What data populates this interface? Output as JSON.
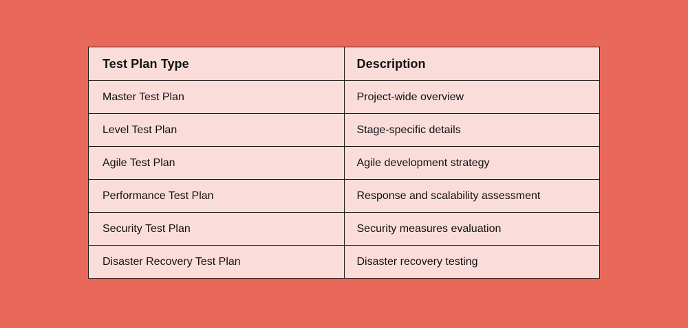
{
  "colors": {
    "background": "#E8695A",
    "cell_background": "#FADDDB",
    "border": "#1A1A1A",
    "text": "#111111"
  },
  "table": {
    "columns": [
      {
        "label": "Test Plan Type"
      },
      {
        "label": "Description"
      }
    ],
    "rows": [
      {
        "type": "Master Test Plan",
        "description": "Project-wide overview"
      },
      {
        "type": "Level Test Plan",
        "description": "Stage-specific details"
      },
      {
        "type": "Agile Test Plan",
        "description": "Agile development strategy"
      },
      {
        "type": "Performance Test Plan",
        "description": "Response and scalability assessment"
      },
      {
        "type": "Security Test Plan",
        "description": "Security measures evaluation"
      },
      {
        "type": "Disaster Recovery Test Plan",
        "description": "Disaster recovery testing"
      }
    ]
  }
}
